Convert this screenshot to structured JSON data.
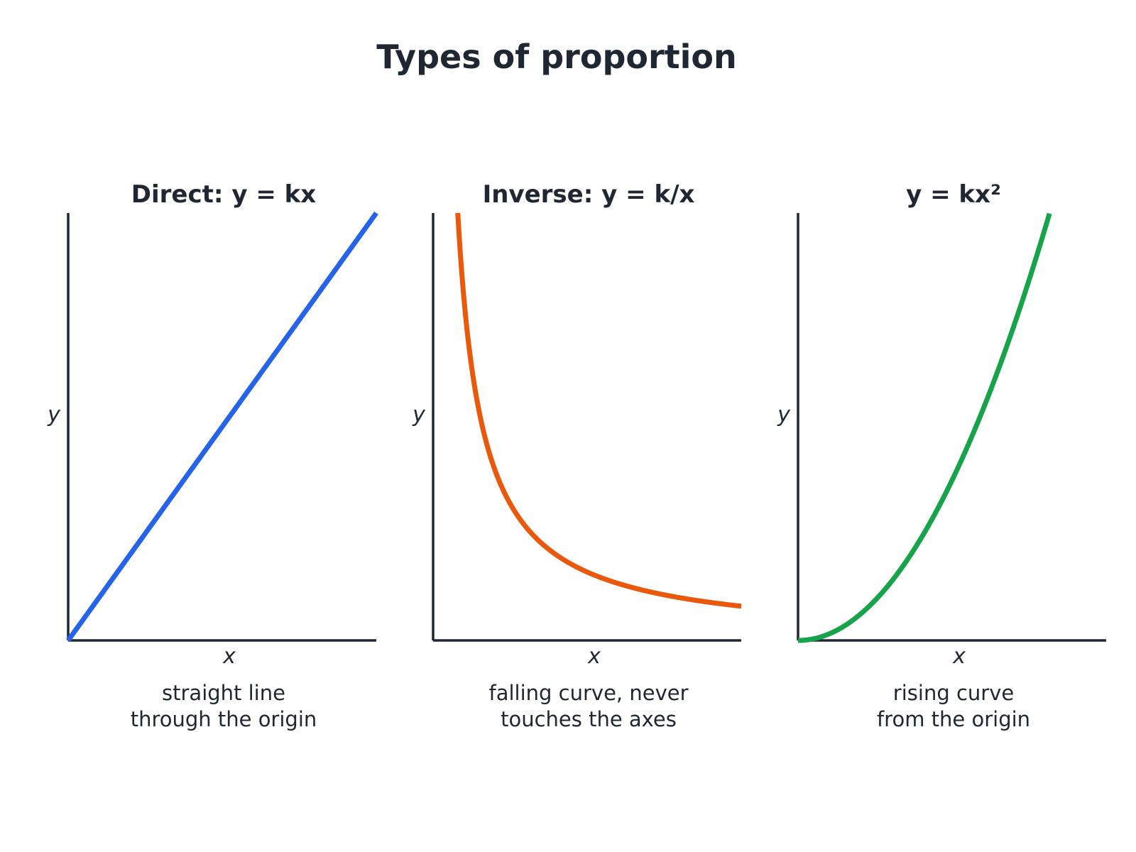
{
  "title": "Types of proportion",
  "axis_color": "#1f2733",
  "chart_data": [
    {
      "type": "line",
      "title": "Direct: y = kx",
      "xlabel": "x",
      "ylabel": "y",
      "color": "#2563eb",
      "xlim": [
        0,
        10
      ],
      "ylim": [
        0,
        10
      ],
      "function": "y = kx",
      "x": [
        0,
        1,
        2,
        3,
        4,
        5,
        6,
        7,
        8,
        9,
        10
      ],
      "y": [
        0,
        1,
        2,
        3,
        4,
        5,
        6,
        7,
        8,
        9,
        10
      ],
      "caption": [
        "straight line",
        "through the origin"
      ]
    },
    {
      "type": "line",
      "title": "Inverse: y = k/x",
      "xlabel": "x",
      "ylabel": "y",
      "color": "#ea580c",
      "xlim": [
        0,
        10
      ],
      "ylim": [
        0,
        10
      ],
      "function": "y = k/x",
      "x": [
        0.8,
        1,
        1.5,
        2,
        3,
        4,
        5,
        6,
        7,
        8,
        9,
        10
      ],
      "y": [
        10,
        8,
        5.33,
        4,
        2.67,
        2,
        1.6,
        1.33,
        1.14,
        1,
        0.89,
        0.8
      ],
      "caption": [
        "falling curve, never",
        "touches the axes"
      ]
    },
    {
      "type": "line",
      "title": "y = kx²",
      "xlabel": "x",
      "ylabel": "y",
      "color": "#16a34a",
      "xlim": [
        0,
        10
      ],
      "ylim": [
        0,
        10
      ],
      "function": "y = kx²",
      "x": [
        0,
        1,
        2,
        3,
        4,
        5,
        6,
        7,
        8,
        8.16
      ],
      "y": [
        0,
        0.15,
        0.6,
        1.35,
        2.4,
        3.75,
        5.4,
        7.35,
        9.6,
        10
      ],
      "caption": [
        "rising curve",
        "from the origin"
      ]
    }
  ]
}
